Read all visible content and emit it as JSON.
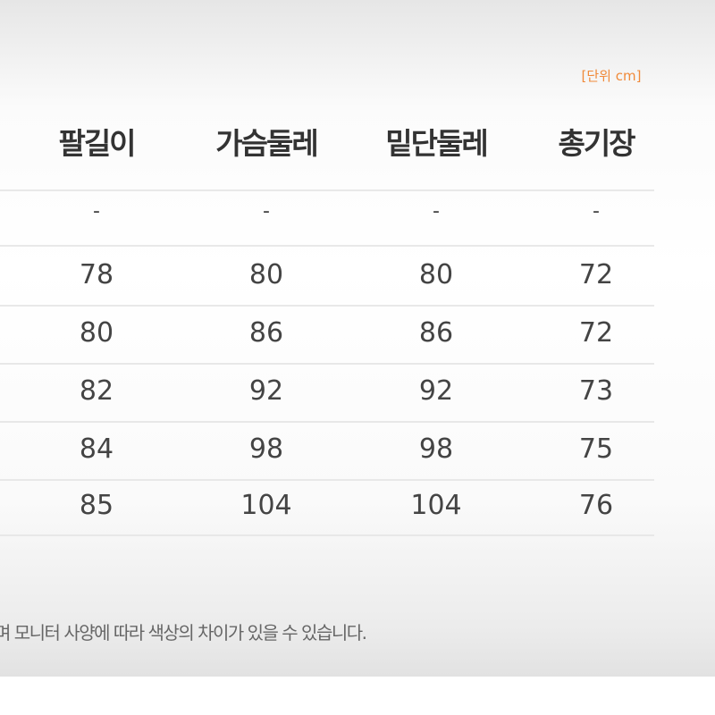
{
  "unit_label": "[단위 cm]",
  "headers": [
    "팔길이",
    "가슴둘레",
    "밑단둘레",
    "총기장"
  ],
  "rows": [
    [
      "-",
      "-",
      "-",
      "-"
    ],
    [
      "78",
      "80",
      "80",
      "72"
    ],
    [
      "80",
      "86",
      "86",
      "72"
    ],
    [
      "82",
      "92",
      "92",
      "73"
    ],
    [
      "84",
      "98",
      "98",
      "75"
    ],
    [
      "85",
      "104",
      "104",
      "76"
    ]
  ],
  "note": "며 모니터 사양에 따라 색상의 차이가 있을 수 있습니다.",
  "colors": {
    "unit": "#f08a3a",
    "text": "#444444"
  }
}
